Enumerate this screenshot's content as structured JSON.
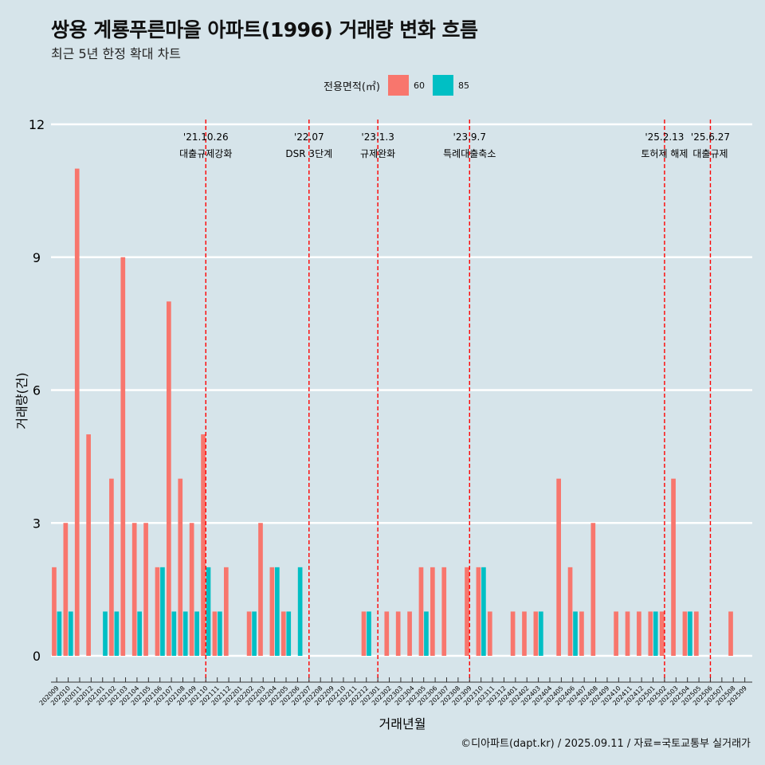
{
  "header": {
    "title": "쌍용 계룡푸른마을 아파트(1996) 거래량 변화 흐름",
    "subtitle": "최근 5년 한정 확대 차트"
  },
  "legend": {
    "title": "전용면적(㎡)",
    "items": [
      {
        "label": "60",
        "color": "#f8766d"
      },
      {
        "label": "85",
        "color": "#00bfc4"
      }
    ]
  },
  "caption": "©디아파트(dapt.kr) / 2025.09.11 / 자료=국토교통부 실거래가",
  "chart_data": {
    "type": "bar",
    "xlabel": "거래년월",
    "ylabel": "거래량(건)",
    "ylim": [
      0,
      12
    ],
    "yticks": [
      0,
      3,
      6,
      9,
      12
    ],
    "grid": true,
    "legend_position": "top",
    "categories": [
      "202009",
      "202010",
      "202011",
      "202012",
      "202101",
      "202102",
      "202103",
      "202104",
      "202105",
      "202106",
      "202107",
      "202108",
      "202109",
      "202110",
      "202111",
      "202112",
      "202201",
      "202202",
      "202203",
      "202204",
      "202205",
      "202206",
      "202207",
      "202208",
      "202209",
      "202210",
      "202211",
      "202212",
      "202301",
      "202302",
      "202303",
      "202304",
      "202305",
      "202306",
      "202307",
      "202308",
      "202309",
      "202310",
      "202311",
      "202312",
      "202401",
      "202402",
      "202403",
      "202404",
      "202405",
      "202406",
      "202407",
      "202408",
      "202409",
      "202410",
      "202411",
      "202412",
      "202501",
      "202502",
      "202503",
      "202504",
      "202505",
      "202506",
      "202507",
      "202508",
      "202509"
    ],
    "series": [
      {
        "name": "60",
        "color": "#f8766d",
        "values": [
          2,
          3,
          11,
          5,
          0,
          4,
          9,
          3,
          3,
          2,
          8,
          4,
          3,
          5,
          1,
          2,
          0,
          1,
          3,
          2,
          1,
          0,
          0,
          0,
          0,
          0,
          0,
          1,
          0,
          1,
          1,
          1,
          2,
          2,
          2,
          0,
          2,
          2,
          1,
          0,
          1,
          1,
          1,
          0,
          4,
          2,
          1,
          3,
          0,
          1,
          1,
          1,
          1,
          1,
          4,
          1,
          1,
          0,
          0,
          1,
          0
        ]
      },
      {
        "name": "85",
        "color": "#00bfc4",
        "values": [
          1,
          1,
          0,
          0,
          1,
          1,
          0,
          1,
          0,
          2,
          1,
          1,
          1,
          2,
          1,
          0,
          0,
          1,
          0,
          2,
          1,
          2,
          0,
          0,
          0,
          0,
          0,
          1,
          0,
          0,
          0,
          0,
          1,
          0,
          0,
          0,
          0,
          2,
          0,
          0,
          0,
          0,
          1,
          0,
          0,
          1,
          0,
          0,
          0,
          0,
          0,
          0,
          1,
          0,
          0,
          1,
          0,
          0,
          0,
          0,
          0
        ]
      }
    ],
    "annotations": [
      {
        "date": "'21.10.26",
        "label": "대출규제강화",
        "category": "202110"
      },
      {
        "date": "'22.07",
        "label": "DSR 3단계",
        "category": "202207"
      },
      {
        "date": "'23.1.3",
        "label": "규제완화",
        "category": "202301"
      },
      {
        "date": "'23.9.7",
        "label": "특례대출축소",
        "category": "202309"
      },
      {
        "date": "'25.2.13",
        "label": "토허제 해제",
        "category": "202502"
      },
      {
        "date": "'25.6.27",
        "label": "대출규제",
        "category": "202506"
      }
    ]
  }
}
